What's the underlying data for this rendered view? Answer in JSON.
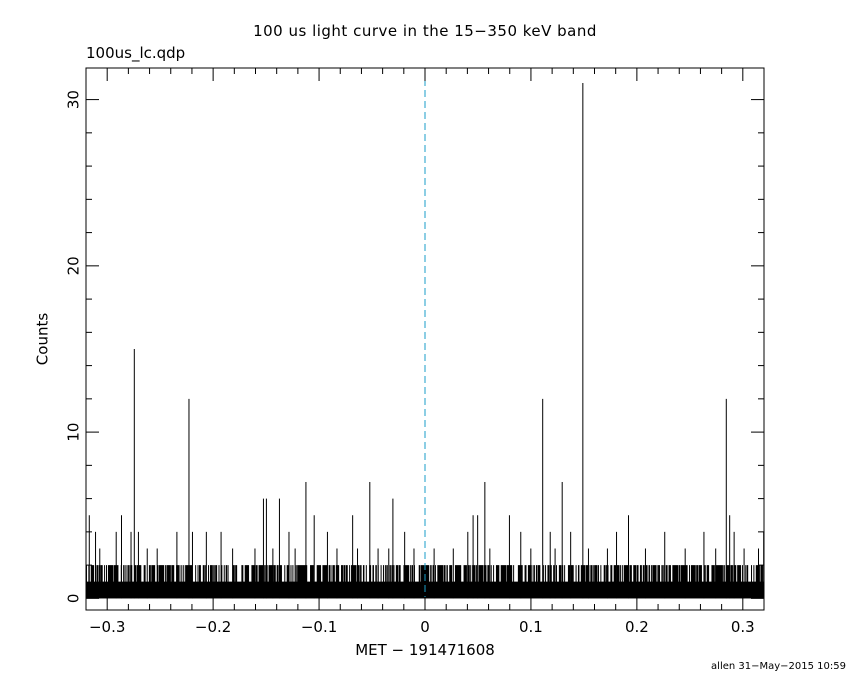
{
  "header": {
    "title": "100 us light curve in the 15−350 keV band",
    "filename": "100us_lc.qdp"
  },
  "footer": {
    "stamp": "allen 31−May−2015 10:59"
  },
  "chart_data": {
    "type": "bar",
    "title": "100 us light curve in the 15−350 keV band",
    "xlabel": "MET − 191471608",
    "ylabel": "Counts",
    "xlim": [
      -0.32,
      0.32
    ],
    "ylim": [
      -0.7,
      31.9
    ],
    "xticks": [
      {
        "value": -0.3,
        "label": "−0.3"
      },
      {
        "value": -0.2,
        "label": "−0.2"
      },
      {
        "value": -0.1,
        "label": "−0.1"
      },
      {
        "value": 0,
        "label": "0"
      },
      {
        "value": 0.1,
        "label": "0.1"
      },
      {
        "value": 0.2,
        "label": "0.2"
      },
      {
        "value": 0.3,
        "label": "0.3"
      }
    ],
    "yticks": [
      {
        "value": 0,
        "label": "0"
      },
      {
        "value": 10,
        "label": "10"
      },
      {
        "value": 20,
        "label": "20"
      },
      {
        "value": 30,
        "label": "30"
      }
    ],
    "bin_width": 0.0001,
    "baseline_counts_range": [
      0,
      2
    ],
    "spikes": [
      {
        "x": -0.3169,
        "y": 5
      },
      {
        "x": -0.311,
        "y": 4
      },
      {
        "x": -0.307,
        "y": 3
      },
      {
        "x": -0.2915,
        "y": 4
      },
      {
        "x": -0.2865,
        "y": 5
      },
      {
        "x": -0.2775,
        "y": 4
      },
      {
        "x": -0.2744,
        "y": 15
      },
      {
        "x": -0.2705,
        "y": 4
      },
      {
        "x": -0.2622,
        "y": 3
      },
      {
        "x": -0.2528,
        "y": 3
      },
      {
        "x": -0.2342,
        "y": 4
      },
      {
        "x": -0.2228,
        "y": 12
      },
      {
        "x": -0.2195,
        "y": 4
      },
      {
        "x": -0.2064,
        "y": 4
      },
      {
        "x": -0.1925,
        "y": 4
      },
      {
        "x": -0.1816,
        "y": 3
      },
      {
        "x": -0.1605,
        "y": 3
      },
      {
        "x": -0.1525,
        "y": 6
      },
      {
        "x": -0.1497,
        "y": 6
      },
      {
        "x": -0.1436,
        "y": 3
      },
      {
        "x": -0.1374,
        "y": 6
      },
      {
        "x": -0.1284,
        "y": 4
      },
      {
        "x": -0.1226,
        "y": 3
      },
      {
        "x": -0.1124,
        "y": 7
      },
      {
        "x": -0.1046,
        "y": 5
      },
      {
        "x": -0.0921,
        "y": 4
      },
      {
        "x": -0.0831,
        "y": 3
      },
      {
        "x": -0.0683,
        "y": 5
      },
      {
        "x": -0.0637,
        "y": 3
      },
      {
        "x": -0.0521,
        "y": 7
      },
      {
        "x": -0.0443,
        "y": 3
      },
      {
        "x": -0.0342,
        "y": 3
      },
      {
        "x": -0.0303,
        "y": 6
      },
      {
        "x": -0.0192,
        "y": 4
      },
      {
        "x": -0.0104,
        "y": 3
      },
      {
        "x": 0.0086,
        "y": 3
      },
      {
        "x": 0.0267,
        "y": 3
      },
      {
        "x": 0.0404,
        "y": 4
      },
      {
        "x": 0.0454,
        "y": 5
      },
      {
        "x": 0.0497,
        "y": 5
      },
      {
        "x": 0.0565,
        "y": 7
      },
      {
        "x": 0.0612,
        "y": 3
      },
      {
        "x": 0.0797,
        "y": 5
      },
      {
        "x": 0.0904,
        "y": 4
      },
      {
        "x": 0.0999,
        "y": 3
      },
      {
        "x": 0.1111,
        "y": 12
      },
      {
        "x": 0.1182,
        "y": 4
      },
      {
        "x": 0.1228,
        "y": 3
      },
      {
        "x": 0.1295,
        "y": 7
      },
      {
        "x": 0.1375,
        "y": 4
      },
      {
        "x": 0.149,
        "y": 31
      },
      {
        "x": 0.1543,
        "y": 3
      },
      {
        "x": 0.1722,
        "y": 3
      },
      {
        "x": 0.1808,
        "y": 4
      },
      {
        "x": 0.1921,
        "y": 5
      },
      {
        "x": 0.2081,
        "y": 3
      },
      {
        "x": 0.2263,
        "y": 4
      },
      {
        "x": 0.2456,
        "y": 3
      },
      {
        "x": 0.2633,
        "y": 4
      },
      {
        "x": 0.2744,
        "y": 3
      },
      {
        "x": 0.2844,
        "y": 12
      },
      {
        "x": 0.2876,
        "y": 5
      },
      {
        "x": 0.2918,
        "y": 4
      },
      {
        "x": 0.3012,
        "y": 3
      },
      {
        "x": 0.3148,
        "y": 3
      },
      {
        "x": 0.3197,
        "y": 4
      }
    ],
    "trigger_line": {
      "x": 0,
      "style": "dashed",
      "color": "#1a9ec9"
    },
    "series_color": "#000000",
    "grid": false
  }
}
